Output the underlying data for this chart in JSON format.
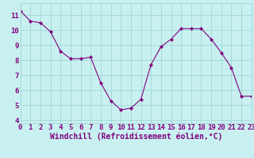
{
  "x": [
    0,
    1,
    2,
    3,
    4,
    5,
    6,
    7,
    8,
    9,
    10,
    11,
    12,
    13,
    14,
    15,
    16,
    17,
    18,
    19,
    20,
    21,
    22,
    23
  ],
  "y": [
    11.3,
    10.6,
    10.5,
    9.9,
    8.6,
    8.1,
    8.1,
    8.2,
    6.5,
    5.3,
    4.7,
    4.8,
    5.4,
    7.7,
    8.9,
    9.4,
    10.1,
    10.1,
    10.1,
    9.4,
    8.5,
    7.5,
    5.6,
    5.6
  ],
  "line_color": "#800080",
  "marker_color": "#800080",
  "bg_color": "#c8f0f0",
  "grid_color": "#a0d8d8",
  "xlabel": "Windchill (Refroidissement éolien,°C)",
  "ylim": [
    3.8,
    11.8
  ],
  "xlim": [
    0,
    23
  ],
  "yticks": [
    4,
    5,
    6,
    7,
    8,
    9,
    10,
    11
  ],
  "xticks": [
    0,
    1,
    2,
    3,
    4,
    5,
    6,
    7,
    8,
    9,
    10,
    11,
    12,
    13,
    14,
    15,
    16,
    17,
    18,
    19,
    20,
    21,
    22,
    23
  ],
  "font_color": "#800080",
  "tick_label_size": 6.5,
  "xlabel_size": 7.0
}
